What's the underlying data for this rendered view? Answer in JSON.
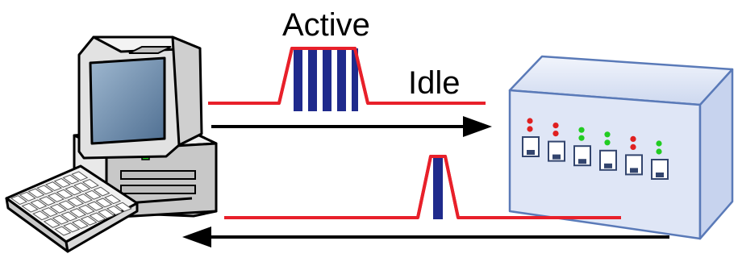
{
  "labels": {
    "active": "Active",
    "idle": "Idle"
  },
  "colors": {
    "signal_line": "#e8202a",
    "pulse_fill": "#1f2a8c",
    "arrow": "#000000",
    "switch_body": "#dfe6f6",
    "switch_edge": "#5a7ab8",
    "computer_body": "#e6e6e6",
    "screen": "#6f8fb0",
    "led_red": "#e02020",
    "led_green": "#22cc22"
  },
  "icons": {
    "computer": "desktop-computer-icon",
    "keyboard": "keyboard-icon",
    "switch": "network-switch-icon"
  },
  "switch": {
    "ports": [
      {
        "leds": [
          "red",
          "red"
        ]
      },
      {
        "leds": [
          "red",
          "red"
        ]
      },
      {
        "leds": [
          "green",
          "green"
        ]
      },
      {
        "leds": [
          "green",
          "green"
        ]
      },
      {
        "leds": [
          "red",
          "red"
        ]
      },
      {
        "leds": [
          "green",
          "green"
        ]
      }
    ]
  }
}
